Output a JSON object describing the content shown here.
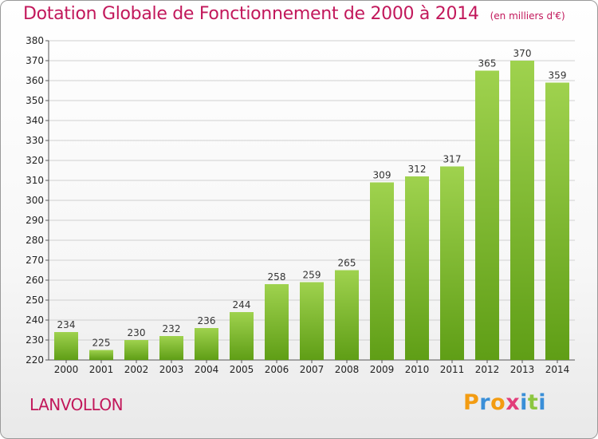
{
  "chart_data": {
    "type": "bar",
    "title": "Dotation Globale de Fonctionnement de 2000 à 2014",
    "subtitle": "(en milliers d'€)",
    "categories": [
      "2000",
      "2001",
      "2002",
      "2003",
      "2004",
      "2005",
      "2006",
      "2007",
      "2008",
      "2009",
      "2010",
      "2011",
      "2012",
      "2013",
      "2014"
    ],
    "values": [
      234,
      225,
      230,
      232,
      236,
      244,
      258,
      259,
      265,
      309,
      312,
      317,
      365,
      370,
      359
    ],
    "ylim": [
      220,
      380
    ],
    "ytick_step": 10,
    "grid": true,
    "xlabel": "",
    "ylabel": ""
  },
  "footer": {
    "commune": "LANVOLLON",
    "logo_letters": [
      "P",
      "r",
      "o",
      "x",
      "i",
      "t",
      "i"
    ]
  },
  "colors": {
    "title": "#c2185b",
    "bar_light": "#9fd24e",
    "bar_dark": "#5f9e16",
    "grid": "#d0d0d0",
    "logo": [
      "#f39c12",
      "#3a8fd8",
      "#f39c12",
      "#e23d7a",
      "#3a8fd8",
      "#8cc63f",
      "#3a8fd8"
    ]
  }
}
